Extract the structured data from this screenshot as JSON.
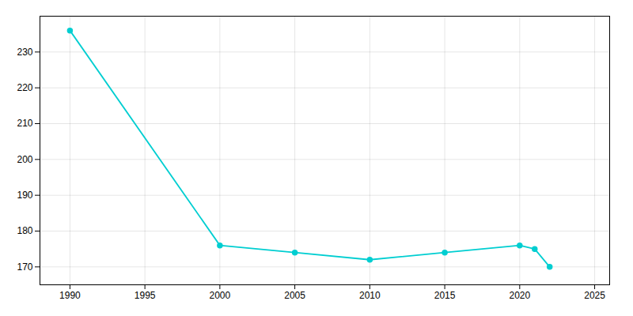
{
  "chart_data": {
    "type": "line",
    "x": [
      1990,
      2000,
      2005,
      2010,
      2015,
      2020,
      2021,
      2022
    ],
    "values": [
      236,
      176,
      174,
      172,
      174,
      176,
      175,
      170
    ],
    "color": "#00CED1",
    "marker": "circle",
    "xlim": [
      1988,
      2026
    ],
    "ylim": [
      165,
      240
    ],
    "xticks": [
      1990,
      1995,
      2000,
      2005,
      2010,
      2015,
      2020,
      2025
    ],
    "yticks": [
      170,
      180,
      190,
      200,
      210,
      220,
      230
    ],
    "grid": true
  }
}
